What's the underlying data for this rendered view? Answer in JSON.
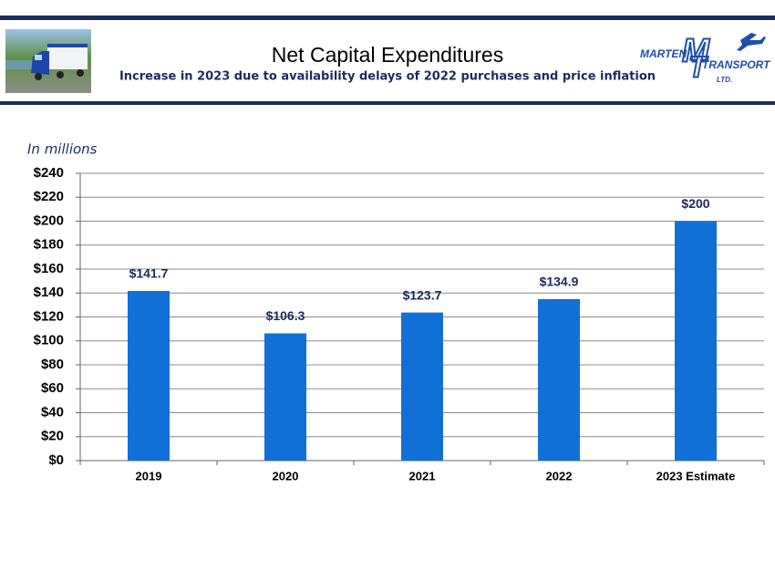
{
  "header": {
    "title": "Net Capital Expenditures",
    "subtitle": "Increase in 2023 due to availability delays of 2022 purchases and price inflation"
  },
  "logo": {
    "letters": [
      "M",
      "T"
    ],
    "words": [
      "MARTEN",
      "TRANSPORT",
      "LTD."
    ]
  },
  "chart_data": {
    "type": "bar",
    "y_label": "In millions",
    "categories": [
      "2019",
      "2020",
      "2021",
      "2022",
      "2023 Estimate"
    ],
    "values": [
      141.7,
      106.3,
      123.7,
      134.9,
      200
    ],
    "value_labels": [
      "$141.7",
      "$106.3",
      "$123.7",
      "$134.9",
      "$200"
    ],
    "color": "#1070d8",
    "ylim": [
      0,
      240
    ],
    "yticks": [
      {
        "value": 0,
        "label": "$0"
      },
      {
        "value": 20,
        "label": "$20"
      },
      {
        "value": 40,
        "label": "$40"
      },
      {
        "value": 60,
        "label": "$60"
      },
      {
        "value": 80,
        "label": "$80"
      },
      {
        "value": 100,
        "label": "$100"
      },
      {
        "value": 120,
        "label": "$120"
      },
      {
        "value": 140,
        "label": "$140"
      },
      {
        "value": 160,
        "label": "$160"
      },
      {
        "value": 180,
        "label": "$180"
      },
      {
        "value": 200,
        "label": "$200"
      },
      {
        "value": 220,
        "label": "$220"
      },
      {
        "value": 240,
        "label": "$240"
      }
    ],
    "grid": true
  }
}
